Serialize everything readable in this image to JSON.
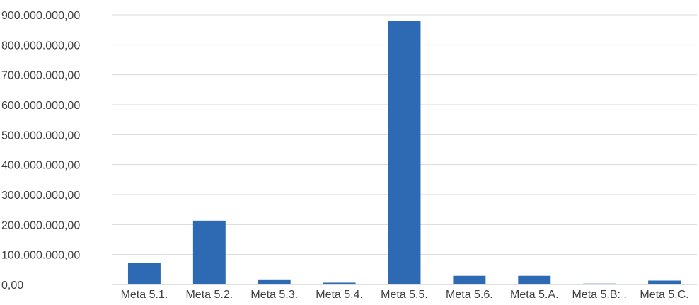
{
  "chart_data": {
    "type": "bar",
    "title": "",
    "xlabel": "",
    "ylabel": "",
    "categories": [
      "Meta 5.1.",
      "Meta 5.2.",
      "Meta 5.3.",
      "Meta 5.4.",
      "Meta 5.5.",
      "Meta 5.6.",
      "Meta 5.A.",
      "Meta 5.B: .",
      "Meta 5.C."
    ],
    "values": [
      72000000,
      213000000,
      17000000,
      6000000,
      881000000,
      29000000,
      29000000,
      3000000,
      13000000
    ],
    "ylim": [
      0,
      900000000
    ],
    "yticks": [
      0,
      100000000,
      200000000,
      300000000,
      400000000,
      500000000,
      600000000,
      700000000,
      800000000,
      900000000
    ],
    "ytick_labels": [
      "0,00",
      "100.000.000,00",
      "200.000.000,00",
      "300.000.000,00",
      "400.000.000,00",
      "500.000.000,00",
      "600.000.000,00",
      "700.000.000,00",
      "800.000.000,00",
      "900.000.000,00"
    ],
    "bar_color": "#2e6ab4",
    "grid": true,
    "legend": "none"
  }
}
